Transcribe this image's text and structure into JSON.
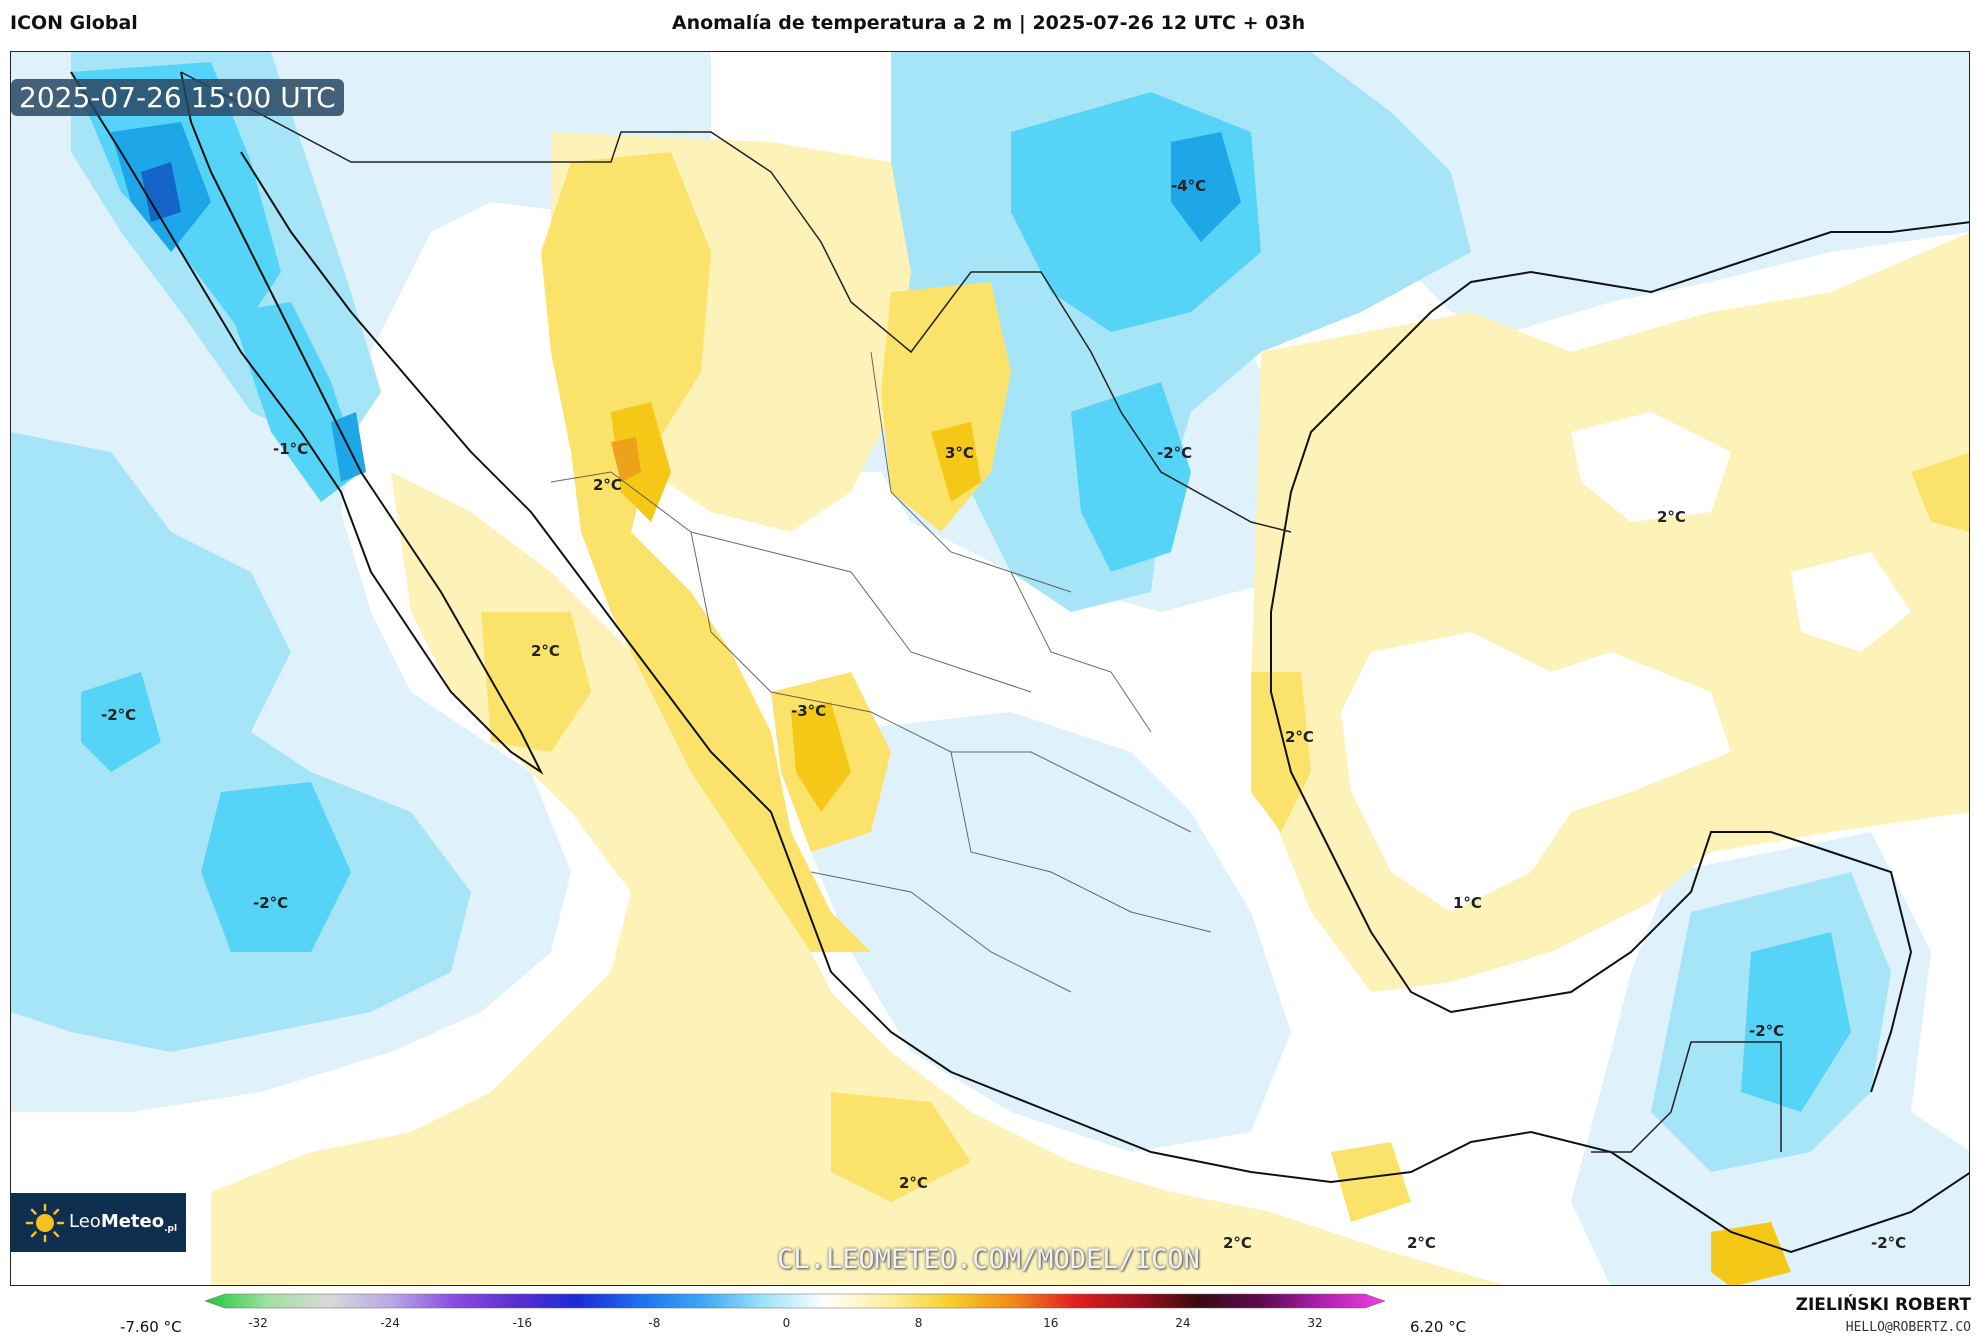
{
  "header": {
    "model": "ICON Global",
    "title": "Anomalía de temperatura a 2 m | 2025-07-26 12 UTC + 03h"
  },
  "map": {
    "valid_time": "2025-07-26 15:00 UTC",
    "watermark": "CL.LEOMETEO.COM/MODEL/ICON",
    "contour_labels": [
      "-4°C",
      "-1°C",
      "2°C",
      "3°C",
      "-2°C",
      "2°C",
      "2°C",
      "-2°C",
      "-3°C",
      "2°C",
      "-2°C",
      "1°C",
      "-2°C",
      "2°C",
      "2°C",
      "2°C",
      "-2°C"
    ],
    "colors": {
      "ocean_neutral": "#ffffff",
      "cold_light": "#dff2fb",
      "cold_mid": "#a6e4f7",
      "cold_strong": "#55d4f7",
      "cold_deep": "#1da6e8",
      "cold_core": "#1565c8",
      "warm_light": "#fdf3b8",
      "warm_mid": "#fbe36b",
      "warm_strong": "#f5c817",
      "warm_core": "#eea21b"
    }
  },
  "logo": {
    "brand": "Leo",
    "brand_bold": "Meteo",
    "tld": ".pl"
  },
  "legend": {
    "min_label": "-7.60 °C",
    "max_label": "6.20 °C",
    "ticks": [
      "-32",
      "-24",
      "-16",
      "-8",
      "0",
      "8",
      "16",
      "24",
      "32"
    ],
    "stops": [
      "#22c63a",
      "#9fe0a0",
      "#d8d8d8",
      "#b8a8e8",
      "#8a4de0",
      "#5a2fd0",
      "#1a2ad8",
      "#1f6ff0",
      "#3aa8f4",
      "#9fe2f8",
      "#ffffff",
      "#fdf0a0",
      "#f7cf2a",
      "#f08a1a",
      "#e02020",
      "#a01020",
      "#3a0a10",
      "#5a0a50",
      "#b020b0",
      "#f040e0"
    ]
  },
  "author": {
    "name": "ZIELIŃSKI ROBERT",
    "email": "HELLO@ROBERTZ.CO"
  }
}
